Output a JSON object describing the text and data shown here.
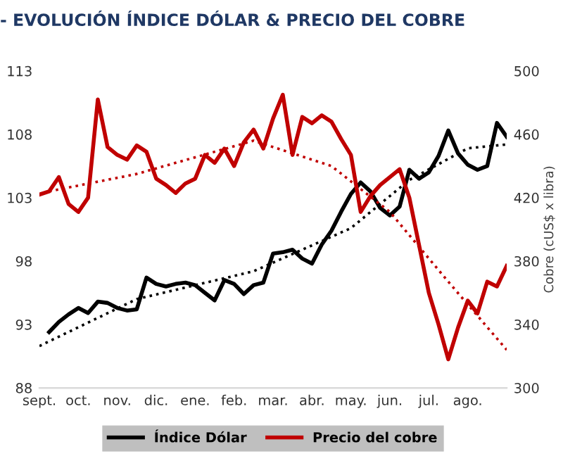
{
  "chart_data": {
    "type": "line",
    "title": "- EVOLUCIÓN ÍNDICE DÓLAR & PRECIO DEL COBRE",
    "y2label": "Cobre (cUS$ x libra)",
    "categories": [
      "sept.",
      null,
      null,
      null,
      "oct.",
      null,
      null,
      null,
      "nov.",
      null,
      null,
      null,
      "dic.",
      null,
      null,
      null,
      "ene.",
      null,
      null,
      null,
      "feb.",
      null,
      null,
      null,
      "mar.",
      null,
      null,
      null,
      "abr.",
      null,
      null,
      null,
      "may.",
      null,
      null,
      null,
      "jun.",
      null,
      null,
      null,
      "jul.",
      null,
      null,
      null,
      "ago.",
      null,
      null,
      null,
      null
    ],
    "ylim": [
      88,
      113
    ],
    "yticks": [
      88,
      93,
      98,
      103,
      108,
      113
    ],
    "y2lim": [
      300,
      500
    ],
    "y2ticks": [
      300,
      340,
      380,
      420,
      460,
      500
    ],
    "grid": false,
    "legend": "bottom",
    "line_style": "solid",
    "marker": "none",
    "series": [
      {
        "name": "Índice Dólar",
        "color": "#000000",
        "values": [
          null,
          92.4,
          93.2,
          93.8,
          94.3,
          93.9,
          94.8,
          94.7,
          94.3,
          94.1,
          94.2,
          96.7,
          96.2,
          96.0,
          96.2,
          96.3,
          96.1,
          95.5,
          94.9,
          96.5,
          96.2,
          95.4,
          96.1,
          96.3,
          98.6,
          98.7,
          98.9,
          98.2,
          97.8,
          99.3,
          100.4,
          101.9,
          103.3,
          104.2,
          103.5,
          102.2,
          101.6,
          102.3,
          105.2,
          104.5,
          105.0,
          106.3,
          108.3,
          106.5,
          105.6,
          105.2,
          105.5,
          108.9,
          107.8
        ]
      },
      {
        "name": "Precio del cobre",
        "color": "#c00000",
        "axis": "y2",
        "values": [
          422,
          424,
          433,
          416,
          411,
          420,
          482,
          452,
          447,
          444,
          453,
          449,
          432,
          428,
          423,
          429,
          432,
          447,
          442,
          451,
          440,
          455,
          463,
          451,
          470,
          485,
          447,
          471,
          467,
          472,
          468,
          457,
          447,
          411,
          421,
          428,
          433,
          438,
          420,
          390,
          360,
          340,
          318,
          338,
          355,
          347,
          367,
          364,
          377
        ]
      },
      {
        "color": "#000000",
        "line_style": "dotted",
        "values": [
          91.3,
          null,
          null,
          null,
          null,
          null,
          null,
          null,
          null,
          null,
          95.0,
          null,
          null,
          null,
          null,
          null,
          null,
          null,
          null,
          null,
          null,
          null,
          97.2,
          null,
          null,
          null,
          null,
          null,
          null,
          null,
          null,
          null,
          100.6,
          null,
          null,
          null,
          null,
          null,
          104.4,
          null,
          null,
          null,
          null,
          null,
          106.9,
          null,
          null,
          null,
          107.2
        ]
      },
      {
        "color": "#c00000",
        "axis": "y2",
        "line_style": "dotted",
        "values": [
          null,
          424,
          null,
          null,
          null,
          null,
          null,
          null,
          null,
          null,
          435,
          null,
          null,
          null,
          null,
          null,
          null,
          null,
          null,
          null,
          null,
          null,
          456,
          null,
          null,
          null,
          null,
          null,
          null,
          null,
          440,
          null,
          null,
          null,
          null,
          null,
          411,
          null,
          null,
          null,
          null,
          null,
          367,
          null,
          null,
          null,
          null,
          null,
          324
        ]
      }
    ]
  }
}
